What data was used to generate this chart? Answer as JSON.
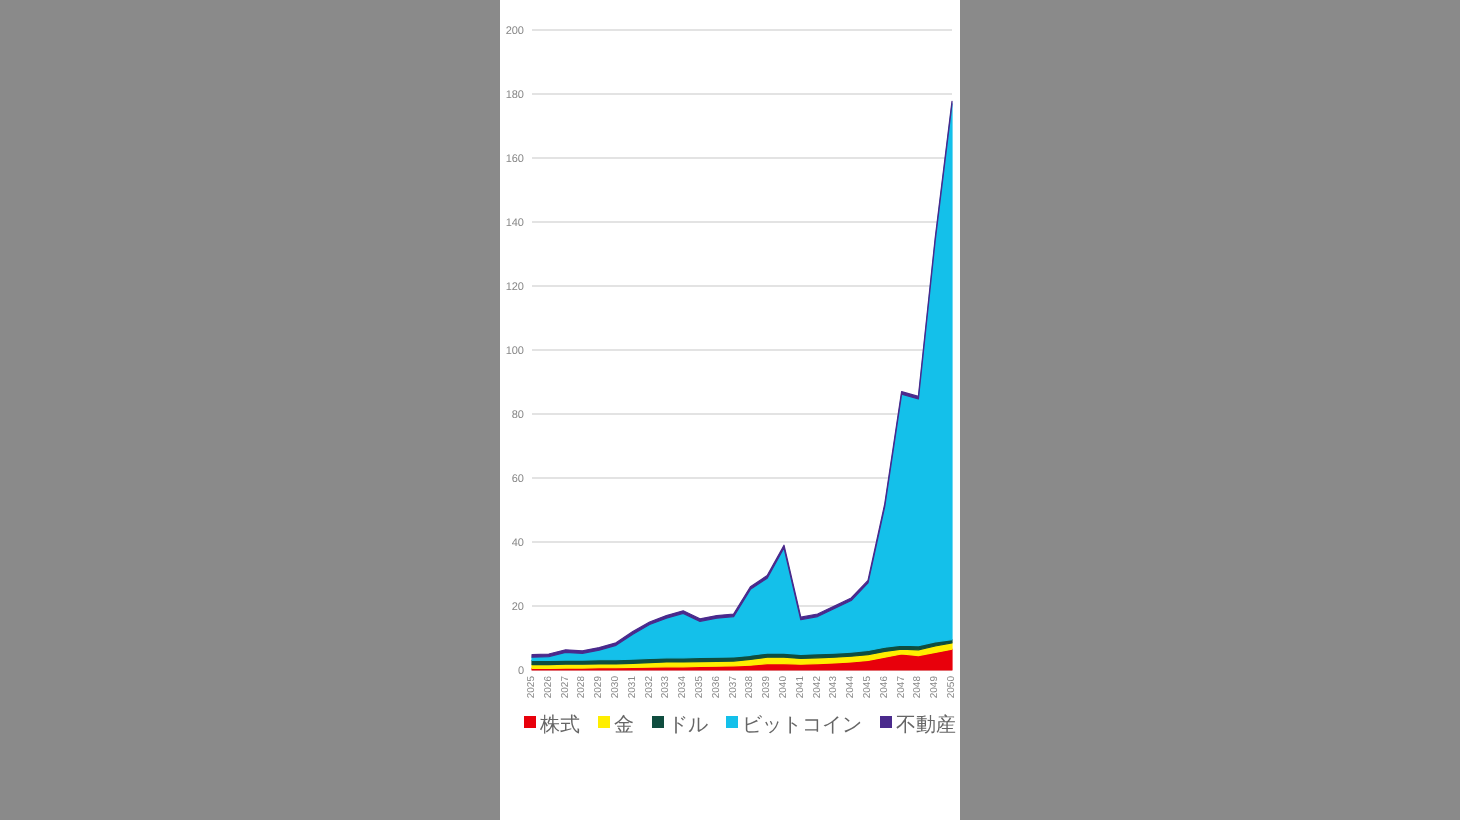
{
  "chart_data": {
    "type": "area",
    "stacked": true,
    "categories": [
      "2025",
      "2026",
      "2027",
      "2028",
      "2029",
      "2030",
      "2031",
      "2032",
      "2033",
      "2034",
      "2035",
      "2036",
      "2037",
      "2038",
      "2039",
      "2040",
      "2041",
      "2042",
      "2043",
      "2044",
      "2045",
      "2046",
      "2047",
      "2048",
      "2049",
      "2050"
    ],
    "series": [
      {
        "name": "株式",
        "color": "#e8000b",
        "values": [
          0.5,
          0.5,
          0.6,
          0.6,
          0.7,
          0.7,
          0.8,
          0.9,
          1.0,
          1.0,
          1.1,
          1.2,
          1.3,
          1.5,
          2.0,
          2.0,
          1.8,
          2.0,
          2.2,
          2.5,
          3.0,
          4.0,
          5.0,
          4.5,
          5.5,
          6.5
        ]
      },
      {
        "name": "金",
        "color": "#ffee00",
        "values": [
          1.2,
          1.2,
          1.2,
          1.2,
          1.2,
          1.2,
          1.3,
          1.4,
          1.5,
          1.5,
          1.5,
          1.5,
          1.5,
          1.8,
          2.0,
          2.0,
          1.8,
          1.8,
          1.8,
          1.8,
          1.8,
          1.8,
          1.5,
          1.8,
          2.0,
          2.0
        ]
      },
      {
        "name": "ドル",
        "color": "#0f4d3f",
        "values": [
          1.3,
          1.3,
          1.3,
          1.3,
          1.3,
          1.3,
          1.3,
          1.3,
          1.3,
          1.3,
          1.3,
          1.3,
          1.3,
          1.3,
          1.3,
          1.3,
          1.3,
          1.3,
          1.3,
          1.3,
          1.3,
          1.3,
          1.3,
          1.3,
          1.3,
          1.0
        ]
      },
      {
        "name": "ビットコイン",
        "color": "#14c0ea",
        "values": [
          1.0,
          1.2,
          2.4,
          2.1,
          3.0,
          4.5,
          7.8,
          10.6,
          12.4,
          13.9,
          11.3,
          12.2,
          12.6,
          20.6,
          23.4,
          32.9,
          10.8,
          11.6,
          13.9,
          16.1,
          21.1,
          44.1,
          78.4,
          77.1,
          125.4,
          167.4
        ]
      },
      {
        "name": "不動産",
        "color": "#4a2a8c",
        "values": [
          0.8,
          0.8,
          0.8,
          0.8,
          0.8,
          0.8,
          0.8,
          0.8,
          0.8,
          0.8,
          0.8,
          0.8,
          0.8,
          0.8,
          0.8,
          0.8,
          0.8,
          0.8,
          0.8,
          0.8,
          0.8,
          0.8,
          0.8,
          0.8,
          0.8,
          0.8
        ]
      }
    ],
    "ylim": [
      0,
      200
    ],
    "yticks": [
      0,
      20,
      40,
      60,
      80,
      100,
      120,
      140,
      160,
      180,
      200
    ],
    "grid": "y",
    "legend": "bottom"
  }
}
